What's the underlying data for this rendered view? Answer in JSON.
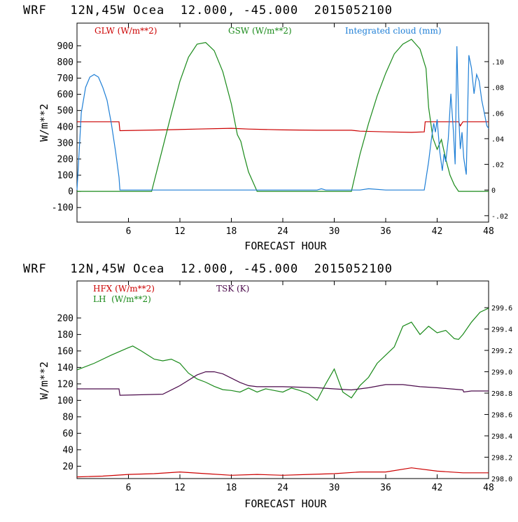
{
  "colors": {
    "red": "#cc0000",
    "green": "#1a8a1a",
    "blue": "#1f7fd6",
    "purple": "#4b0a4b",
    "black": "#000000"
  },
  "chart_data": [
    {
      "type": "line",
      "title": "WRF   12N,45W Ocea  12.000, -45.000  2015052100",
      "xlabel": "FORECAST HOUR",
      "ylabel": "W/m**2",
      "xlim": [
        0,
        48
      ],
      "ylim": [
        -190,
        1040
      ],
      "y2lim": [
        -0.025,
        0.13
      ],
      "xticks": [
        "6",
        "12",
        "18",
        "24",
        "30",
        "36",
        "42",
        "48"
      ],
      "xtick_values": [
        6,
        12,
        18,
        24,
        30,
        36,
        42,
        48
      ],
      "yticks": [
        "-100",
        "0",
        "100",
        "200",
        "300",
        "400",
        "500",
        "600",
        "700",
        "800",
        "900"
      ],
      "ytick_values": [
        -100,
        0,
        100,
        200,
        300,
        400,
        500,
        600,
        700,
        800,
        900
      ],
      "y2ticks": [
        "-.02",
        "0",
        ".02",
        ".04",
        ".06",
        ".08",
        ".10"
      ],
      "y2tick_values": [
        -0.02,
        0,
        0.02,
        0.04,
        0.06,
        0.08,
        0.1
      ],
      "legend": [
        "GLW (W/m**2)",
        "GSW (W/m**2)",
        "Integrated cloud (mm)"
      ],
      "series": [
        {
          "name": "GLW (W/m**2)",
          "axis": "left",
          "color": "red",
          "x": [
            0,
            4.9,
            5.0,
            10,
            14,
            18,
            20,
            24,
            28,
            32,
            33,
            36,
            39,
            40.5,
            40.6,
            44.5,
            44.7,
            45.0,
            48
          ],
          "y": [
            430,
            430,
            375,
            380,
            385,
            390,
            385,
            380,
            378,
            378,
            372,
            368,
            365,
            368,
            430,
            430,
            405,
            430,
            430
          ]
        },
        {
          "name": "GSW (W/m**2)",
          "axis": "left",
          "color": "green",
          "x": [
            0,
            8.7,
            10,
            11,
            12,
            13,
            14,
            15,
            16,
            17,
            18,
            18.7,
            19.1,
            19.5,
            20,
            21,
            32.0,
            33,
            34,
            35,
            36,
            37,
            38,
            39,
            40,
            40.7,
            41.0,
            41.5,
            42,
            42.5,
            43,
            43.5,
            44,
            44.5,
            48
          ],
          "y": [
            0,
            0,
            270,
            480,
            680,
            830,
            910,
            920,
            870,
            740,
            540,
            350,
            310,
            220,
            120,
            0,
            0,
            230,
            420,
            590,
            730,
            850,
            910,
            940,
            880,
            760,
            520,
            330,
            260,
            320,
            200,
            100,
            40,
            0,
            0
          ]
        },
        {
          "name": "Integrated cloud (mm)",
          "axis": "right",
          "color": "blue",
          "x": [
            0,
            0.25,
            0.5,
            1.0,
            1.5,
            2.0,
            2.5,
            3.0,
            3.5,
            4.0,
            4.5,
            4.9,
            5.0,
            28.0,
            28.5,
            29.0,
            33.0,
            34.0,
            36.0,
            40.5,
            41.0,
            41.3,
            41.6,
            41.8,
            42.0,
            42.3,
            42.6,
            42.8,
            43.0,
            43.3,
            43.6,
            43.9,
            44.1,
            44.3,
            44.5,
            44.7,
            44.9,
            45.1,
            45.4,
            45.7,
            46.0,
            46.3,
            46.6,
            46.9,
            47.2,
            47.5,
            47.8,
            48
          ],
          "y": [
            0,
            0.03,
            0.06,
            0.08,
            0.088,
            0.09,
            0.088,
            0.08,
            0.07,
            0.052,
            0.03,
            0.01,
            0,
            0,
            0.001,
            0,
            0,
            0.001,
            0,
            0,
            0.022,
            0.038,
            0.052,
            0.045,
            0.055,
            0.03,
            0.015,
            0.028,
            0.022,
            0.04,
            0.075,
            0.045,
            0.02,
            0.112,
            0.06,
            0.032,
            0.045,
            0.025,
            0.012,
            0.105,
            0.095,
            0.075,
            0.09,
            0.085,
            0.07,
            0.06,
            0.05,
            0.048
          ]
        }
      ]
    },
    {
      "type": "line",
      "title": "WRF   12N,45W Ocea  12.000, -45.000  2015052100",
      "xlabel": "FORECAST HOUR",
      "ylabel": "W/m**2",
      "xlim": [
        0,
        48
      ],
      "ylim": [
        5,
        245
      ],
      "y2lim": [
        298.0,
        299.85
      ],
      "xticks": [
        "6",
        "12",
        "18",
        "24",
        "30",
        "36",
        "42",
        "48"
      ],
      "xtick_values": [
        6,
        12,
        18,
        24,
        30,
        36,
        42,
        48
      ],
      "yticks": [
        "20",
        "40",
        "60",
        "80",
        "100",
        "120",
        "140",
        "160",
        "180",
        "200"
      ],
      "ytick_values": [
        20,
        40,
        60,
        80,
        100,
        120,
        140,
        160,
        180,
        200
      ],
      "y2ticks": [
        "298.0",
        "298.2",
        "298.4",
        "298.6",
        "298.8",
        "299.0",
        "299.2",
        "299.4",
        "299.6"
      ],
      "y2tick_values": [
        298.0,
        298.2,
        298.4,
        298.6,
        298.8,
        299.0,
        299.2,
        299.4,
        299.6
      ],
      "legend": [
        "HFX (W/m**2)",
        "LH  (W/m**2)",
        "TSK (K)"
      ],
      "series": [
        {
          "name": "HFX (W/m**2)",
          "axis": "left",
          "color": "red",
          "x": [
            0,
            3,
            6,
            9,
            12,
            15,
            18,
            21,
            24,
            27,
            30,
            33,
            36,
            39,
            42,
            45,
            48
          ],
          "y": [
            7,
            8,
            10,
            11,
            13,
            11,
            9,
            10,
            9,
            10,
            11,
            13,
            13,
            18,
            14,
            12,
            12
          ]
        },
        {
          "name": "LH  (W/m**2)",
          "axis": "left",
          "color": "green",
          "x": [
            0,
            2,
            4,
            6,
            6.5,
            7.5,
            9,
            10,
            11,
            12,
            13,
            14,
            15,
            16,
            17,
            18,
            19,
            20,
            21,
            22,
            23,
            24,
            25,
            26,
            27,
            28,
            29,
            30,
            31,
            32,
            33,
            34,
            35,
            36,
            37,
            38,
            39,
            40,
            41,
            42,
            43,
            44,
            44.5,
            45,
            46,
            47,
            48
          ],
          "y": [
            137,
            145,
            155,
            164,
            166,
            160,
            150,
            148,
            150,
            145,
            133,
            126,
            122,
            117,
            113,
            112,
            110,
            115,
            110,
            114,
            112,
            110,
            115,
            112,
            108,
            100,
            120,
            138,
            110,
            103,
            118,
            128,
            145,
            155,
            165,
            190,
            195,
            180,
            190,
            182,
            185,
            175,
            174,
            180,
            195,
            207,
            212
          ]
        },
        {
          "name": "TSK (K)",
          "axis": "right",
          "color": "purple",
          "x": [
            0,
            4.9,
            5.0,
            10,
            12,
            14,
            15,
            16,
            17,
            19,
            20,
            21,
            24,
            28,
            30,
            32,
            34,
            36,
            38,
            40,
            42,
            45,
            45.1,
            46,
            48
          ],
          "y": [
            298.84,
            298.84,
            298.78,
            298.79,
            298.87,
            298.97,
            299.0,
            299.0,
            298.98,
            298.9,
            298.87,
            298.86,
            298.86,
            298.85,
            298.84,
            298.83,
            298.85,
            298.88,
            298.88,
            298.86,
            298.85,
            298.83,
            298.81,
            298.82,
            298.82
          ]
        }
      ]
    }
  ]
}
